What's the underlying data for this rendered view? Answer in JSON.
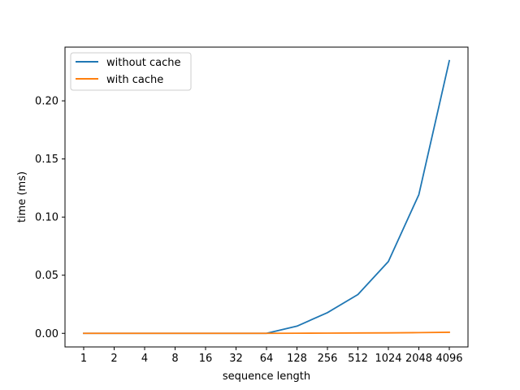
{
  "chart_data": {
    "type": "line",
    "categories": [
      "1",
      "2",
      "4",
      "8",
      "16",
      "32",
      "64",
      "128",
      "256",
      "512",
      "1024",
      "2048",
      "4096"
    ],
    "series": [
      {
        "name": "without cache",
        "color": "#1f77b4",
        "values": [
          0.0,
          0.0,
          0.0,
          0.0,
          0.0,
          0.0,
          0.0,
          0.0062,
          0.0178,
          0.0334,
          0.0618,
          0.1193,
          0.2345
        ]
      },
      {
        "name": "with cache",
        "color": "#ff7f0e",
        "values": [
          0.0,
          0.0,
          0.0,
          0.0,
          0.0,
          0.0,
          0.0,
          0.0001,
          0.0002,
          0.0003,
          0.0004,
          0.0006,
          0.0009
        ]
      }
    ],
    "xlabel": "sequence length",
    "ylabel": "time (ms)",
    "ylim": [
      -0.0117,
      0.2462
    ],
    "yticks": [
      0.0,
      0.05,
      0.1,
      0.15,
      0.2
    ],
    "ytick_labels": [
      "0.00",
      "0.05",
      "0.10",
      "0.15",
      "0.20"
    ],
    "grid": false,
    "legend_position": "top-left"
  }
}
